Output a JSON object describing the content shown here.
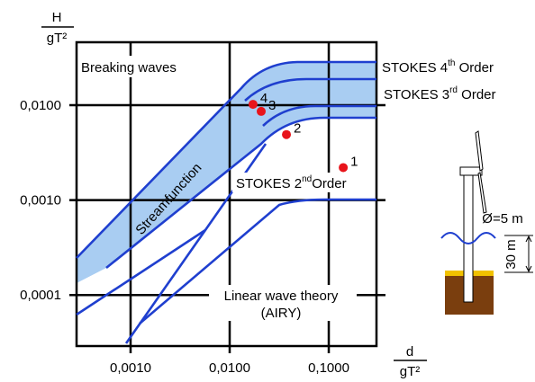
{
  "chart_data": {
    "type": "scatter",
    "xlabel": {
      "top": "d",
      "bottom": "gT²"
    },
    "ylabel": {
      "top": "H",
      "bottom": "gT²"
    },
    "log_x": true,
    "log_y": true,
    "grid": true,
    "xlim": [
      0.000285,
      0.303
    ],
    "ylim": [
      2.9e-05,
      0.046
    ],
    "xticks": [
      {
        "value": 0.001,
        "label": "0,0010"
      },
      {
        "value": 0.01,
        "label": "0,0100"
      },
      {
        "value": 0.1,
        "label": "0,1000"
      }
    ],
    "yticks": [
      {
        "value": 0.0001,
        "label": "0,0001"
      },
      {
        "value": 0.001,
        "label": "0,0010"
      },
      {
        "value": 0.01,
        "label": "0,0100"
      }
    ],
    "series": [
      {
        "color": "#e8141b",
        "x": [
          0.14,
          0.0374,
          0.0208,
          0.0172
        ],
        "values": [
          0.0022,
          0.0049,
          0.0086,
          0.0102
        ],
        "labels": [
          "1",
          "2",
          "3",
          "4"
        ]
      }
    ],
    "annotations": {
      "breaking": "Breaking waves",
      "stokes4": {
        "text": "STOKES 4",
        "sup": "th",
        "rest": " Order"
      },
      "stokes3": {
        "text": "STOKES 3",
        "sup": "rd",
        "rest": " Order"
      },
      "stokes2": {
        "text": "STOKES 2",
        "sup": "nd",
        "rest": "Order"
      },
      "streamfunction": "Streamfunction",
      "linear": "Linear wave theory",
      "airy": "(AIRY)",
      "diameter": "Ø=5 m",
      "depth": "30 m"
    }
  }
}
